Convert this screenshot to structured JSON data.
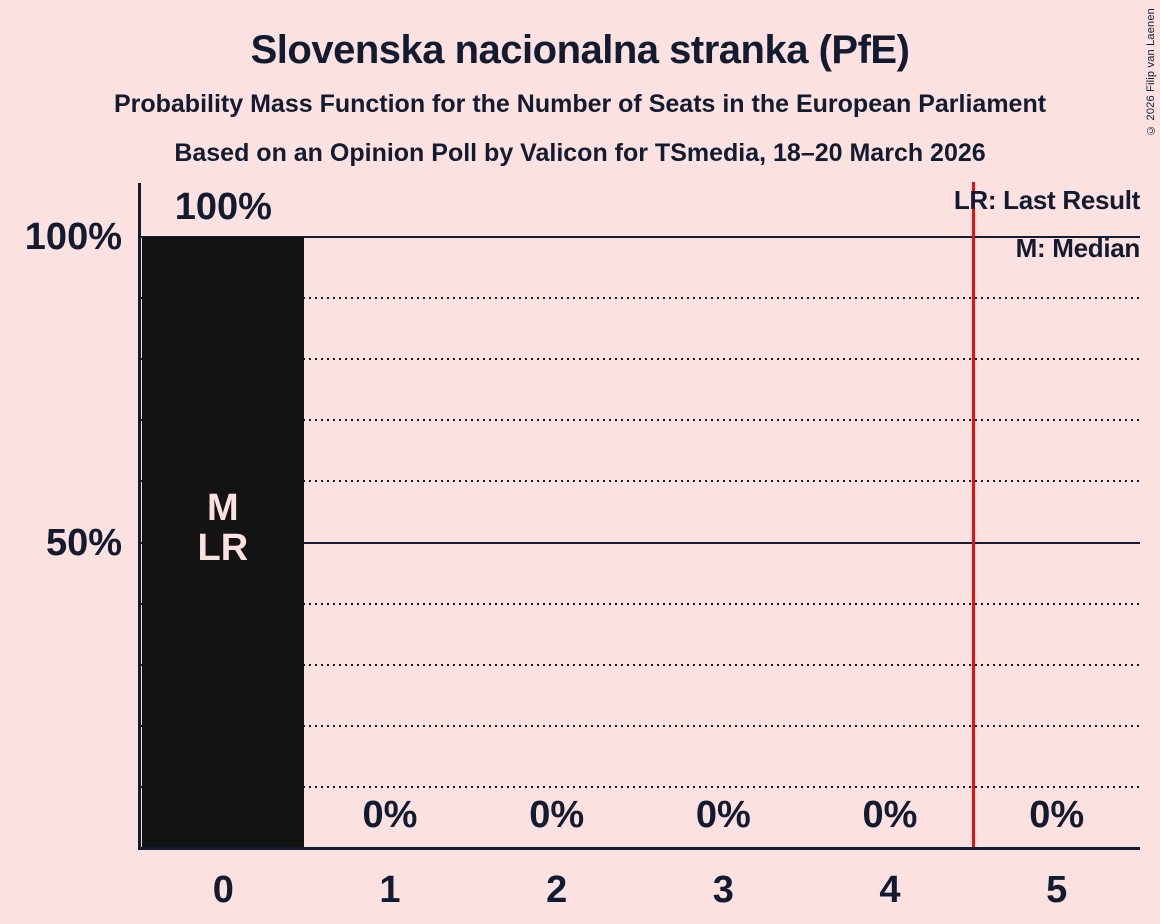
{
  "page": {
    "background": "#fce1e1",
    "text_color": "#121b30",
    "copyright": "© 2026 Filip van Laenen"
  },
  "chart_data": {
    "type": "bar",
    "title": "Slovenska nacionalna stranka (PfE)",
    "subtitle": "Probability Mass Function for the Number of Seats in the European Parliament",
    "source_line": "Based on an Opinion Poll by Valicon for TSmedia, 18–20 March 2026",
    "xlabel": "",
    "ylabel": "",
    "categories": [
      "0",
      "1",
      "2",
      "3",
      "4",
      "5"
    ],
    "values": [
      100,
      0,
      0,
      0,
      0,
      0
    ],
    "value_labels": [
      "100%",
      "0%",
      "0%",
      "0%",
      "0%",
      "0%"
    ],
    "ylim": [
      0,
      100
    ],
    "yticks": [
      {
        "value": 100,
        "label": "100%"
      },
      {
        "value": 50,
        "label": "50%"
      }
    ],
    "gridlines": {
      "solid_at": [
        100,
        50
      ],
      "dotted_at": [
        90,
        80,
        70,
        60,
        40,
        30,
        20,
        10
      ]
    },
    "legend": [
      {
        "label": "LR: Last Result"
      },
      {
        "label": "M: Median"
      }
    ],
    "bar_annotations": [
      {
        "seat_index": 0,
        "lines": [
          "M",
          "LR"
        ]
      }
    ],
    "median_seat": 0,
    "last_result_seat": 0,
    "last_result_marker_x": 4.5,
    "colors": {
      "bar": "#131314",
      "red_line": "#ee0d0d",
      "grid": "#121b30",
      "annotation_text": "#fce1e1"
    }
  }
}
